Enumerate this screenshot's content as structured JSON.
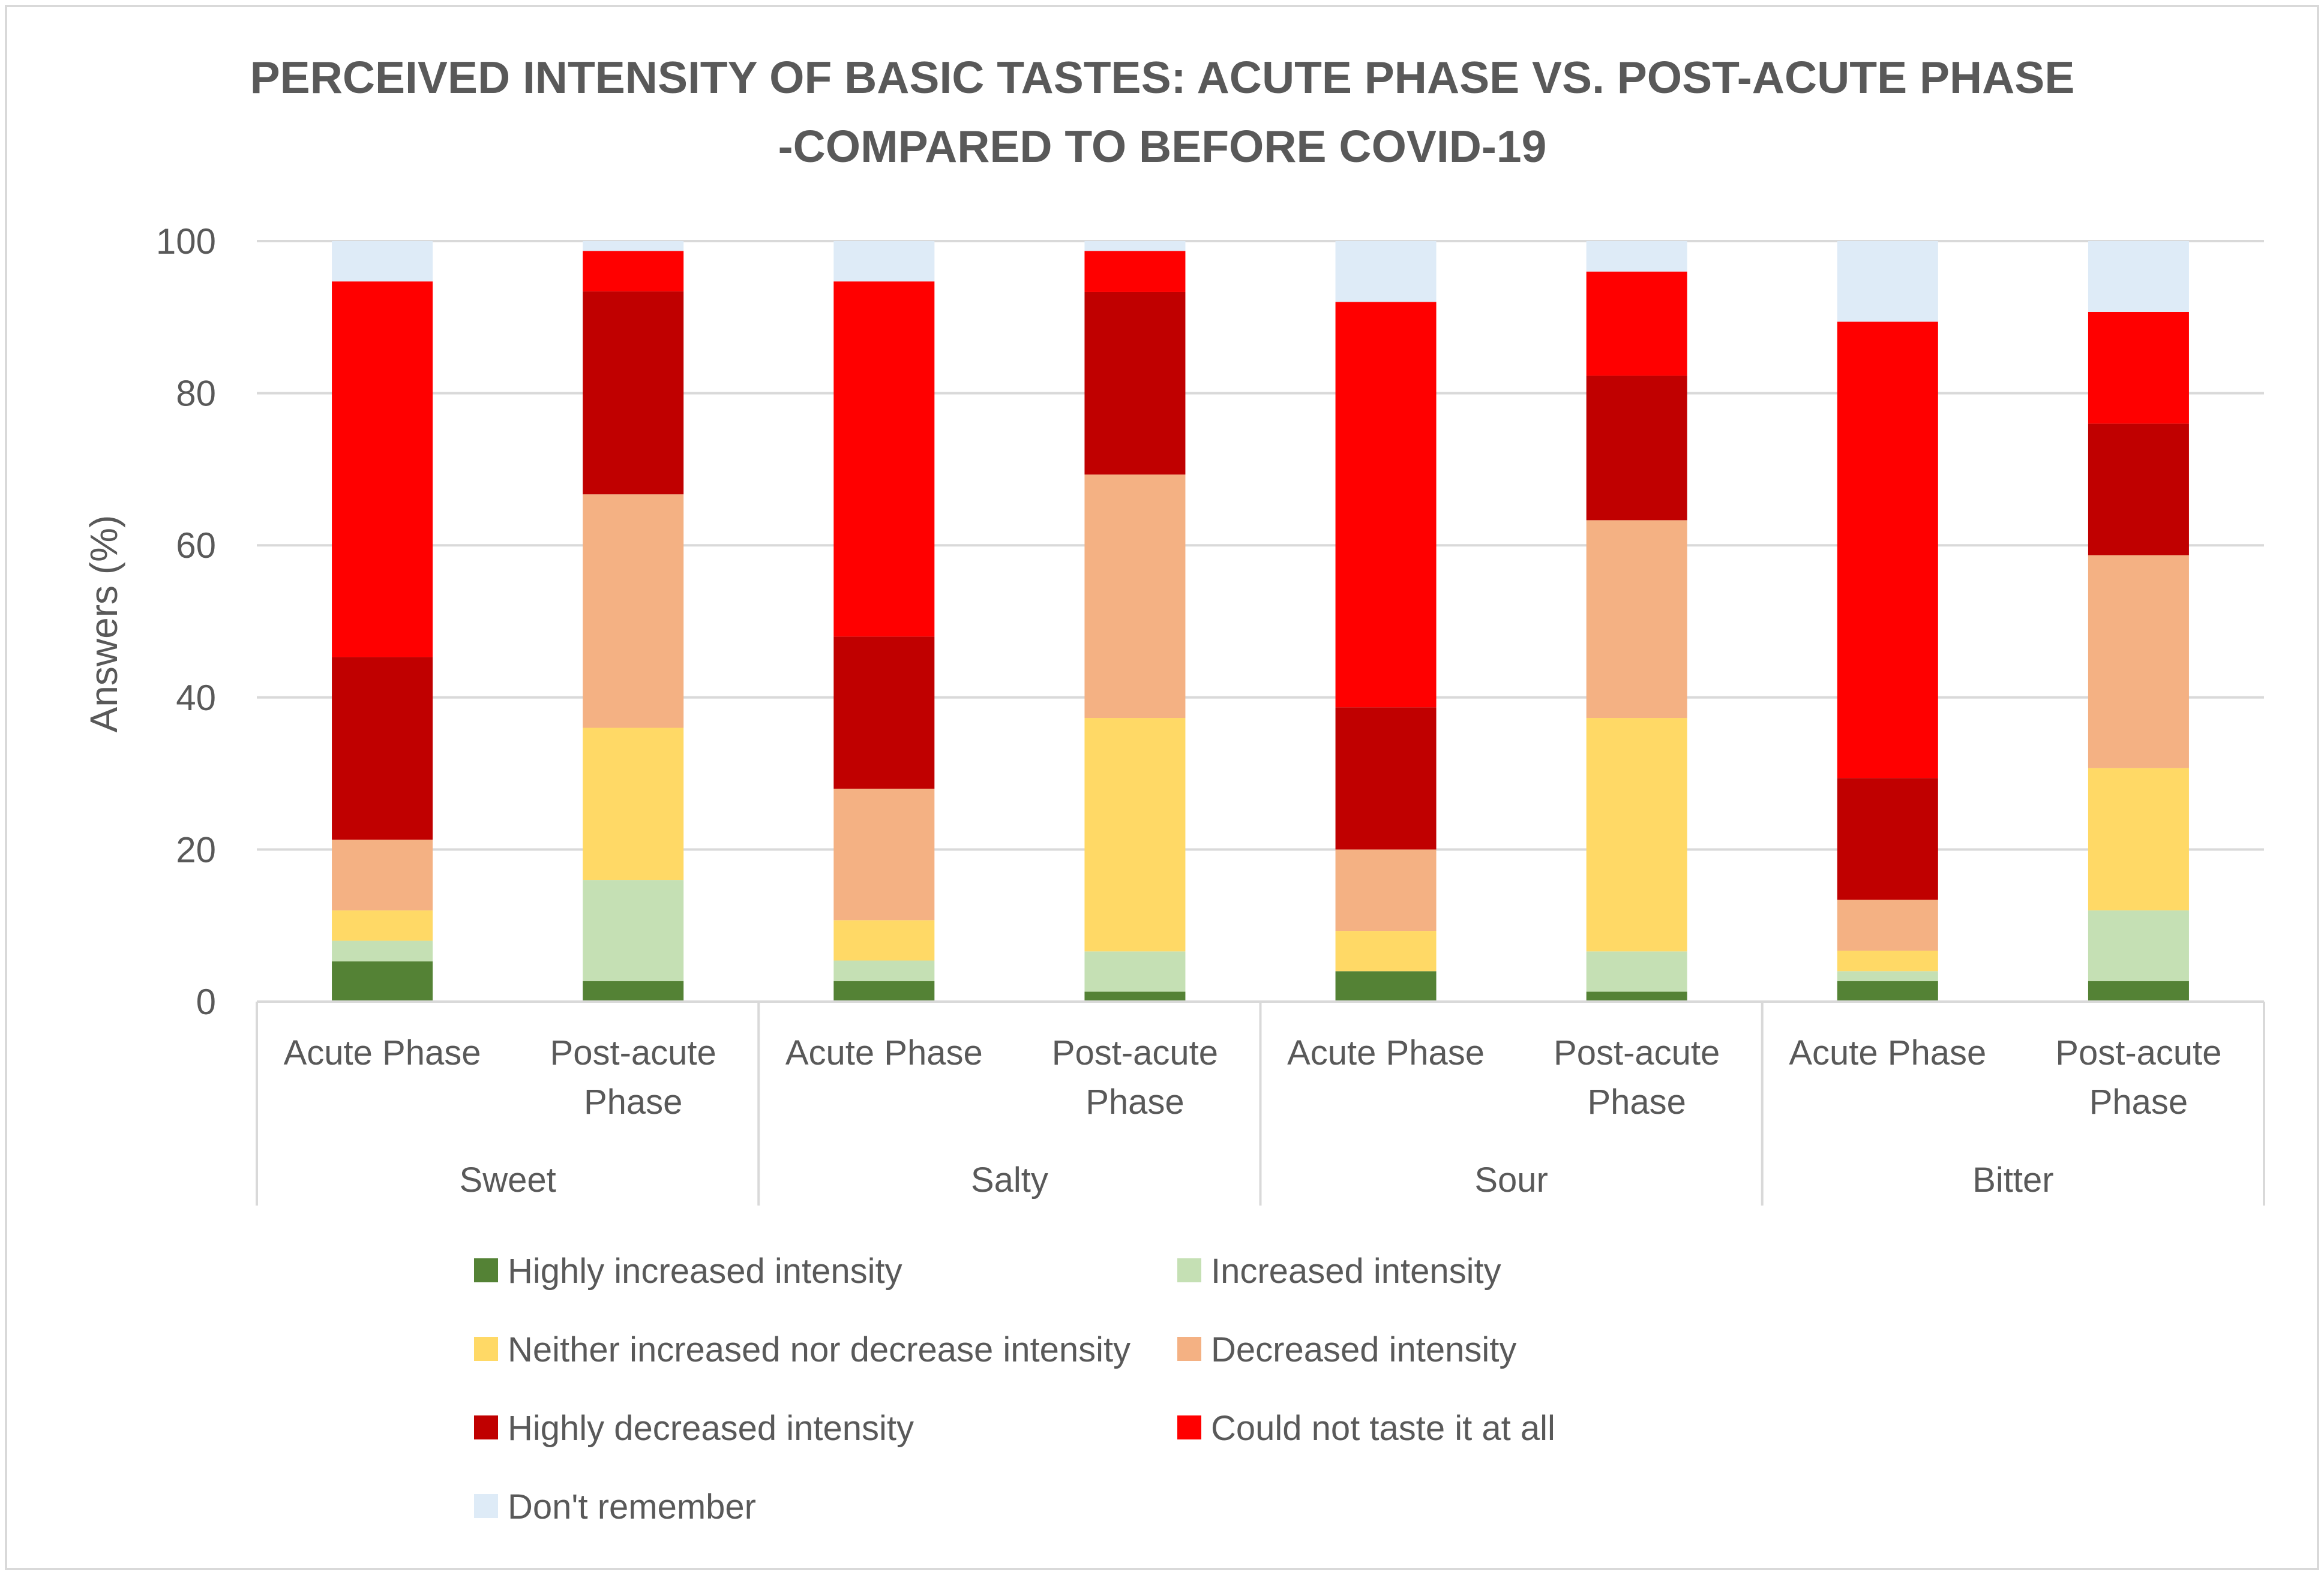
{
  "chart_data": {
    "type": "bar",
    "stacked": true,
    "title": [
      "PERCEIVED INTENSITY OF BASIC TASTES: ACUTE PHASE VS. POST-ACUTE PHASE",
      "-COMPARED TO BEFORE COVID-19"
    ],
    "ylabel": "Answers (%)",
    "ylim": [
      0,
      100
    ],
    "yticks": [
      0,
      20,
      40,
      60,
      80,
      100
    ],
    "groups": [
      "Sweet",
      "Salty",
      "Sour",
      "Bitter"
    ],
    "phases": [
      [
        "Acute Phase"
      ],
      [
        "Post-acute",
        "Phase"
      ]
    ],
    "categories": [
      "Sweet - Acute Phase",
      "Sweet - Post-acute Phase",
      "Salty - Acute Phase",
      "Salty - Post-acute Phase",
      "Sour - Acute Phase",
      "Sour - Post-acute Phase",
      "Bitter - Acute Phase",
      "Bitter - Post-acute Phase"
    ],
    "series": [
      {
        "name": "Highly increased intensity",
        "color": "#548235",
        "values": [
          5.3,
          2.7,
          2.7,
          1.3,
          4.0,
          1.3,
          2.7,
          2.7
        ]
      },
      {
        "name": "Increased intensity",
        "color": "#C5E0B4",
        "values": [
          2.7,
          13.3,
          2.7,
          5.3,
          0,
          5.3,
          1.3,
          9.3
        ]
      },
      {
        "name": "Neither increased nor decrease intensity",
        "color": "#FFD966",
        "values": [
          4.0,
          20.0,
          5.3,
          30.7,
          5.3,
          30.7,
          2.7,
          18.7
        ]
      },
      {
        "name": "Decreased intensity",
        "color": "#F4B183",
        "values": [
          9.3,
          30.7,
          17.3,
          32.0,
          10.7,
          26.0,
          6.7,
          28.0
        ]
      },
      {
        "name": "Highly decreased intensity",
        "color": "#C00000",
        "values": [
          24.0,
          26.7,
          20.0,
          24.0,
          18.7,
          19.0,
          16.0,
          17.3
        ]
      },
      {
        "name": "Could not taste it at all",
        "color": "#FF0000",
        "values": [
          49.4,
          5.3,
          46.7,
          5.4,
          53.3,
          13.7,
          60.0,
          14.7
        ]
      },
      {
        "name": "Don't remember",
        "color": "#DEEBF7",
        "values": [
          5.3,
          1.3,
          5.3,
          1.3,
          8.0,
          4.0,
          10.6,
          9.3
        ]
      }
    ]
  }
}
